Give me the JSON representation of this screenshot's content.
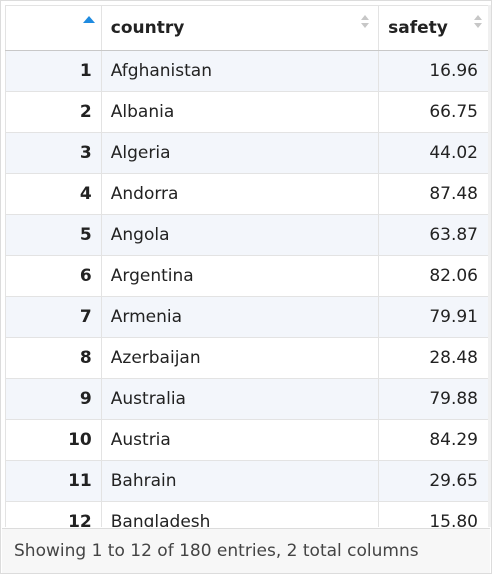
{
  "table": {
    "columns": [
      {
        "key": "index",
        "label": ""
      },
      {
        "key": "country",
        "label": "country"
      },
      {
        "key": "safety",
        "label": "safety"
      }
    ],
    "sort": {
      "column": "index",
      "direction": "ascending"
    },
    "rows": [
      {
        "index": "1",
        "country": "Afghanistan",
        "safety": "16.96"
      },
      {
        "index": "2",
        "country": "Albania",
        "safety": "66.75"
      },
      {
        "index": "3",
        "country": "Algeria",
        "safety": "44.02"
      },
      {
        "index": "4",
        "country": "Andorra",
        "safety": "87.48"
      },
      {
        "index": "5",
        "country": "Angola",
        "safety": "63.87"
      },
      {
        "index": "6",
        "country": "Argentina",
        "safety": "82.06"
      },
      {
        "index": "7",
        "country": "Armenia",
        "safety": "79.91"
      },
      {
        "index": "8",
        "country": "Azerbaijan",
        "safety": "28.48"
      },
      {
        "index": "9",
        "country": "Australia",
        "safety": "79.88"
      },
      {
        "index": "10",
        "country": "Austria",
        "safety": "84.29"
      },
      {
        "index": "11",
        "country": "Bahrain",
        "safety": "29.65"
      },
      {
        "index": "12",
        "country": "Bangladesh",
        "safety": "15.80"
      }
    ]
  },
  "footer": {
    "info": "Showing 1 to 12 of 180 entries, 2 total columns"
  },
  "colors": {
    "sort_active": "#1f8be0",
    "stripe": "#f3f6fb",
    "footer_bg": "#f7f7f7"
  }
}
